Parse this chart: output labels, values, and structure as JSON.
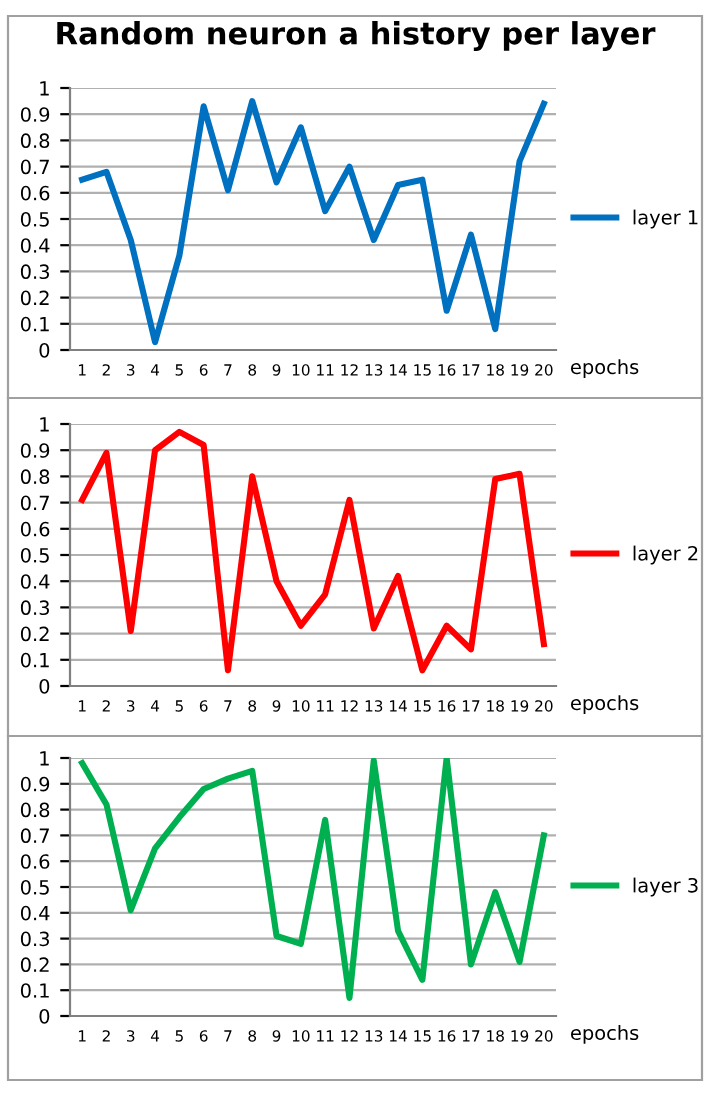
{
  "chart_data": [
    {
      "type": "line",
      "title": "Random neuron a history per layer",
      "xlabel": "epochs",
      "categories": [
        "1",
        "2",
        "3",
        "4",
        "5",
        "6",
        "7",
        "8",
        "9",
        "10",
        "11",
        "12",
        "13",
        "14",
        "15",
        "16",
        "17",
        "18",
        "19",
        "20"
      ],
      "series": [
        {
          "name": "layer 1",
          "color": "#0070c0",
          "values": [
            0.65,
            0.68,
            0.42,
            0.03,
            0.36,
            0.93,
            0.61,
            0.95,
            0.64,
            0.85,
            0.53,
            0.7,
            0.42,
            0.63,
            0.65,
            0.15,
            0.44,
            0.08,
            0.72,
            0.94
          ]
        }
      ],
      "ylim": [
        0,
        1
      ],
      "yticks": [
        0,
        0.1,
        0.2,
        0.3,
        0.4,
        0.5,
        0.6,
        0.7,
        0.8,
        0.9,
        1
      ],
      "grid": "y",
      "legend": "right",
      "marker": "none",
      "line_style": "solid"
    },
    {
      "type": "line",
      "xlabel": "epochs",
      "categories": [
        "1",
        "2",
        "3",
        "4",
        "5",
        "6",
        "7",
        "8",
        "9",
        "10",
        "11",
        "12",
        "13",
        "14",
        "15",
        "16",
        "17",
        "18",
        "19",
        "20"
      ],
      "series": [
        {
          "name": "layer 2",
          "color": "#ff0000",
          "values": [
            0.71,
            0.89,
            0.21,
            0.9,
            0.97,
            0.92,
            0.06,
            0.8,
            0.4,
            0.23,
            0.35,
            0.71,
            0.22,
            0.42,
            0.06,
            0.23,
            0.14,
            0.79,
            0.81,
            0.16
          ]
        }
      ],
      "ylim": [
        0,
        1
      ],
      "yticks": [
        0,
        0.1,
        0.2,
        0.3,
        0.4,
        0.5,
        0.6,
        0.7,
        0.8,
        0.9,
        1
      ],
      "grid": "y",
      "legend": "right",
      "marker": "none",
      "line_style": "solid"
    },
    {
      "type": "line",
      "xlabel": "epochs",
      "categories": [
        "1",
        "2",
        "3",
        "4",
        "5",
        "6",
        "7",
        "8",
        "9",
        "10",
        "11",
        "12",
        "13",
        "14",
        "15",
        "16",
        "17",
        "18",
        "19",
        "20"
      ],
      "series": [
        {
          "name": "layer 3",
          "color": "#00b050",
          "values": [
            0.98,
            0.82,
            0.41,
            0.65,
            0.77,
            0.88,
            0.92,
            0.95,
            0.31,
            0.28,
            0.76,
            0.07,
            0.99,
            0.33,
            0.14,
            1.0,
            0.2,
            0.48,
            0.21,
            0.7
          ]
        }
      ],
      "ylim": [
        0,
        1
      ],
      "yticks": [
        0,
        0.1,
        0.2,
        0.3,
        0.4,
        0.5,
        0.6,
        0.7,
        0.8,
        0.9,
        1
      ],
      "grid": "y",
      "legend": "right",
      "marker": "none",
      "line_style": "solid"
    }
  ]
}
